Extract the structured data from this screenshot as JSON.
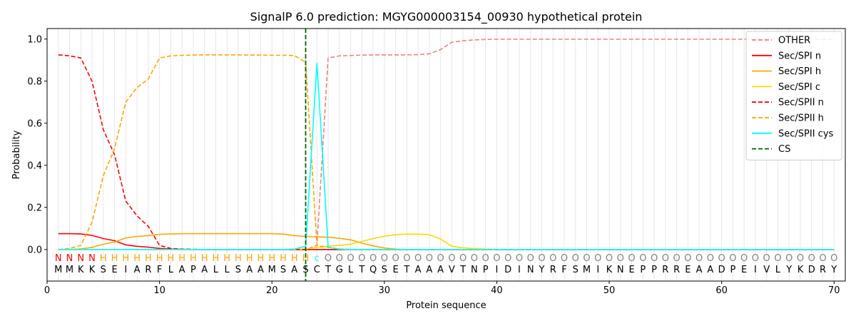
{
  "chart_data": {
    "type": "line",
    "title": "SignalP 6.0 prediction: MGYG000003154_00930 hypothetical protein",
    "xlabel": "Protein sequence",
    "ylabel": "Probability",
    "xlim": [
      0,
      71
    ],
    "ylim": [
      -0.15,
      1.05
    ],
    "x_ticks": [
      0,
      10,
      20,
      30,
      40,
      50,
      60,
      70
    ],
    "y_ticks": [
      0.0,
      0.2,
      0.4,
      0.6,
      0.8,
      1.0
    ],
    "x_tick_labels": [
      "0",
      "10",
      "20",
      "30",
      "40",
      "50",
      "60",
      "70"
    ],
    "y_tick_labels": [
      "0.0",
      "0.2",
      "0.4",
      "0.6",
      "0.8",
      "1.0"
    ],
    "grid": "vertical lines at each position",
    "legend_position": "top-right",
    "sequence": [
      "M",
      "M",
      "K",
      "K",
      "S",
      "E",
      "I",
      "A",
      "R",
      "F",
      "L",
      "A",
      "P",
      "A",
      "L",
      "L",
      "S",
      "A",
      "A",
      "M",
      "S",
      "A",
      "S",
      "C",
      "T",
      "G",
      "L",
      "T",
      "Q",
      "S",
      "E",
      "T",
      "A",
      "A",
      "A",
      "V",
      "T",
      "N",
      "P",
      "I",
      "D",
      "I",
      "N",
      "Y",
      "R",
      "F",
      "S",
      "M",
      "I",
      "K",
      "N",
      "E",
      "P",
      "P",
      "R",
      "R",
      "E",
      "A",
      "A",
      "D",
      "P",
      "E",
      "I",
      "V",
      "L",
      "Y",
      "K",
      "D",
      "R",
      "Y"
    ],
    "labels": [
      "N",
      "N",
      "N",
      "N",
      "H",
      "H",
      "H",
      "H",
      "H",
      "H",
      "H",
      "H",
      "H",
      "H",
      "H",
      "H",
      "H",
      "H",
      "H",
      "H",
      "H",
      "H",
      "H",
      "c",
      "O",
      "O",
      "O",
      "O",
      "O",
      "O",
      "O",
      "O",
      "O",
      "O",
      "O",
      "O",
      "O",
      "O",
      "O",
      "O",
      "O",
      "O",
      "O",
      "O",
      "O",
      "O",
      "O",
      "O",
      "O",
      "O",
      "O",
      "O",
      "O",
      "O",
      "O",
      "O",
      "O",
      "O",
      "O",
      "O",
      "O",
      "O",
      "O",
      "O",
      "O",
      "O",
      "O",
      "O",
      "O",
      "O"
    ],
    "label_colors": {
      "N": "#ff0000",
      "H": "#ffa500",
      "c": "#00ffff",
      "O": "#808080"
    },
    "cs_position": 23,
    "series": [
      {
        "name": "OTHER",
        "color": "#f08080",
        "dash": "dashed",
        "values": [
          0.0,
          0.0,
          0.0,
          0.0,
          0.0,
          0.0,
          0.0,
          0.0,
          0.0,
          0.0,
          0.0,
          0.0,
          0.0,
          0.0,
          0.0,
          0.0,
          0.0,
          0.0,
          0.0,
          0.0,
          0.0,
          0.0,
          0.0,
          0.02,
          0.91,
          0.92,
          0.922,
          0.924,
          0.925,
          0.925,
          0.925,
          0.925,
          0.926,
          0.93,
          0.95,
          0.985,
          0.992,
          0.996,
          0.998,
          0.999,
          0.999,
          0.999,
          0.999,
          0.999,
          0.999,
          0.999,
          0.999,
          0.999,
          0.999,
          0.999,
          0.999,
          0.999,
          0.999,
          0.999,
          0.999,
          0.999,
          0.999,
          0.999,
          0.999,
          0.999,
          0.999,
          0.999,
          0.999,
          0.999,
          0.999,
          0.999,
          0.999,
          0.999,
          0.999,
          0.999
        ]
      },
      {
        "name": "Sec/SPI n",
        "color": "#ff0000",
        "dash": "solid",
        "values": [
          0.075,
          0.075,
          0.074,
          0.067,
          0.052,
          0.042,
          0.022,
          0.015,
          0.011,
          0.005,
          0.002,
          0.001,
          0.0,
          0.0,
          0.0,
          0.0,
          0.0,
          0.0,
          0.0,
          0.0,
          0.0,
          0.0,
          0.0,
          0.0,
          0.0,
          0.0,
          0.0,
          0.0,
          0.0,
          0.0,
          0.0,
          0.0,
          0.0,
          0.0,
          0.0,
          0.0,
          0.0,
          0.0,
          0.0,
          0.0,
          0.0,
          0.0,
          0.0,
          0.0,
          0.0,
          0.0,
          0.0,
          0.0,
          0.0,
          0.0,
          0.0,
          0.0,
          0.0,
          0.0,
          0.0,
          0.0,
          0.0,
          0.0,
          0.0,
          0.0,
          0.0,
          0.0,
          0.0,
          0.0,
          0.0,
          0.0,
          0.0,
          0.0,
          0.0,
          0.0
        ]
      },
      {
        "name": "Sec/SPI h",
        "color": "#ffa500",
        "dash": "solid",
        "values": [
          0.0,
          0.0,
          0.003,
          0.01,
          0.025,
          0.035,
          0.055,
          0.062,
          0.066,
          0.072,
          0.074,
          0.075,
          0.075,
          0.075,
          0.075,
          0.075,
          0.075,
          0.075,
          0.075,
          0.075,
          0.073,
          0.066,
          0.062,
          0.06,
          0.058,
          0.053,
          0.046,
          0.03,
          0.017,
          0.007,
          0.002,
          0.0,
          0.0,
          0.0,
          0.0,
          0.0,
          0.0,
          0.0,
          0.0,
          0.0,
          0.0,
          0.0,
          0.0,
          0.0,
          0.0,
          0.0,
          0.0,
          0.0,
          0.0,
          0.0,
          0.0,
          0.0,
          0.0,
          0.0,
          0.0,
          0.0,
          0.0,
          0.0,
          0.0,
          0.0,
          0.0,
          0.0,
          0.0,
          0.0,
          0.0,
          0.0,
          0.0,
          0.0,
          0.0,
          0.0
        ]
      },
      {
        "name": "Sec/SPI c",
        "color": "#ffd700",
        "dash": "solid",
        "values": [
          0.0,
          0.0,
          0.0,
          0.0,
          0.0,
          0.0,
          0.0,
          0.0,
          0.0,
          0.0,
          0.0,
          0.0,
          0.0,
          0.0,
          0.0,
          0.0,
          0.0,
          0.0,
          0.0,
          0.0,
          0.0,
          0.0,
          0.003,
          0.01,
          0.015,
          0.02,
          0.025,
          0.038,
          0.052,
          0.063,
          0.07,
          0.073,
          0.073,
          0.07,
          0.05,
          0.015,
          0.008,
          0.004,
          0.002,
          0.001,
          0.0,
          0.0,
          0.0,
          0.0,
          0.0,
          0.0,
          0.0,
          0.0,
          0.0,
          0.0,
          0.0,
          0.0,
          0.0,
          0.0,
          0.0,
          0.0,
          0.0,
          0.0,
          0.0,
          0.0,
          0.0,
          0.0,
          0.0,
          0.0,
          0.0,
          0.0,
          0.0,
          0.0,
          0.0,
          0.0
        ]
      },
      {
        "name": "Sec/SPII n",
        "color": "#ff0000",
        "dash": "dashed",
        "values": [
          0.925,
          0.92,
          0.91,
          0.8,
          0.57,
          0.45,
          0.23,
          0.16,
          0.11,
          0.02,
          0.005,
          0.002,
          0.001,
          0.0,
          0.0,
          0.0,
          0.0,
          0.0,
          0.0,
          0.0,
          0.0,
          0.0,
          0.0,
          0.0,
          0.0,
          0.0,
          0.0,
          0.0,
          0.0,
          0.0,
          0.0,
          0.0,
          0.0,
          0.0,
          0.0,
          0.0,
          0.0,
          0.0,
          0.0,
          0.0,
          0.0,
          0.0,
          0.0,
          0.0,
          0.0,
          0.0,
          0.0,
          0.0,
          0.0,
          0.0,
          0.0,
          0.0,
          0.0,
          0.0,
          0.0,
          0.0,
          0.0,
          0.0,
          0.0,
          0.0,
          0.0,
          0.0,
          0.0,
          0.0,
          0.0,
          0.0,
          0.0,
          0.0,
          0.0,
          0.0
        ]
      },
      {
        "name": "Sec/SPII h",
        "color": "#ffa500",
        "dash": "dashed",
        "values": [
          0.0,
          0.005,
          0.02,
          0.13,
          0.35,
          0.48,
          0.7,
          0.77,
          0.81,
          0.91,
          0.92,
          0.923,
          0.924,
          0.925,
          0.925,
          0.925,
          0.925,
          0.924,
          0.924,
          0.923,
          0.923,
          0.922,
          0.89,
          0.02,
          0.01,
          0.003,
          0.001,
          0.0,
          0.0,
          0.0,
          0.0,
          0.0,
          0.0,
          0.0,
          0.0,
          0.0,
          0.0,
          0.0,
          0.0,
          0.0,
          0.0,
          0.0,
          0.0,
          0.0,
          0.0,
          0.0,
          0.0,
          0.0,
          0.0,
          0.0,
          0.0,
          0.0,
          0.0,
          0.0,
          0.0,
          0.0,
          0.0,
          0.0,
          0.0,
          0.0,
          0.0,
          0.0,
          0.0,
          0.0,
          0.0,
          0.0,
          0.0,
          0.0,
          0.0,
          0.0
        ]
      },
      {
        "name": "Sec/SPII cys",
        "color": "#00ffff",
        "dash": "solid",
        "values": [
          0.0,
          0.0,
          0.0,
          0.0,
          0.0,
          0.0,
          0.0,
          0.0,
          0.0,
          0.0,
          0.0,
          0.0,
          0.0,
          0.0,
          0.0,
          0.0,
          0.0,
          0.0,
          0.0,
          0.0,
          0.0,
          0.002,
          0.015,
          0.885,
          0.01,
          0.002,
          0.0,
          0.0,
          0.0,
          0.0,
          0.0,
          0.0,
          0.0,
          0.0,
          0.0,
          0.0,
          0.0,
          0.0,
          0.0,
          0.0,
          0.0,
          0.0,
          0.0,
          0.0,
          0.0,
          0.0,
          0.0,
          0.0,
          0.0,
          0.0,
          0.0,
          0.0,
          0.0,
          0.0,
          0.0,
          0.0,
          0.0,
          0.0,
          0.0,
          0.0,
          0.0,
          0.0,
          0.0,
          0.0,
          0.0,
          0.0,
          0.0,
          0.0,
          0.0,
          0.0
        ]
      }
    ],
    "cs_legend": {
      "name": "CS",
      "color": "#006400",
      "dash": "dashed"
    }
  }
}
